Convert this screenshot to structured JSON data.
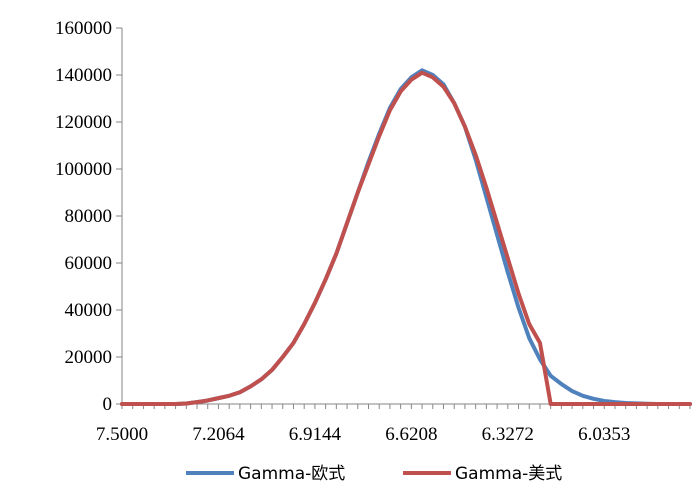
{
  "chart_data": {
    "type": "line",
    "x": [
      7.5,
      7.4673,
      7.4346,
      7.4019,
      7.3692,
      7.3365,
      7.3038,
      7.2711,
      7.2384,
      7.2064,
      7.174,
      7.1415,
      7.109,
      7.0765,
      7.044,
      7.0117,
      6.9792,
      6.9467,
      6.9144,
      6.8819,
      6.8494,
      6.8169,
      6.7844,
      6.7519,
      6.7186,
      6.6858,
      6.653,
      6.6208,
      6.5884,
      6.5561,
      6.5236,
      6.4911,
      6.4586,
      6.4252,
      6.3925,
      6.3598,
      6.3272,
      6.2946,
      6.262,
      6.2294,
      6.1968,
      6.1642,
      6.1316,
      6.099,
      6.0664,
      6.0353,
      6.0027,
      5.9701,
      5.9375,
      5.9049,
      5.8723,
      5.8397,
      5.8071,
      5.7745
    ],
    "series": [
      {
        "name": "Gamma-欧式",
        "color": "#4f81bd",
        "values": [
          0,
          0,
          0,
          0,
          0,
          0,
          200,
          800,
          1500,
          2500,
          3500,
          5000,
          7500,
          10500,
          14500,
          20000,
          26000,
          34000,
          43000,
          53000,
          64000,
          77000,
          90000,
          103000,
          115000,
          126000,
          134000,
          139000,
          142000,
          140000,
          136000,
          128000,
          118000,
          104000,
          88000,
          72000,
          56000,
          41000,
          28000,
          19000,
          12000,
          8500,
          5500,
          3500,
          2200,
          1300,
          800,
          450,
          250,
          100,
          0,
          0,
          0,
          0
        ]
      },
      {
        "name": "Gamma-美式",
        "color": "#c0504d",
        "values": [
          0,
          0,
          0,
          0,
          0,
          0,
          200,
          800,
          1500,
          2500,
          3500,
          5000,
          7500,
          10500,
          14500,
          20000,
          26000,
          34000,
          43000,
          53000,
          64000,
          77000,
          90000,
          102000,
          114000,
          125000,
          133000,
          138000,
          141000,
          139000,
          135000,
          128000,
          118000,
          106000,
          92000,
          77000,
          62000,
          47000,
          34000,
          26000,
          0,
          0,
          0,
          0,
          0,
          0,
          0,
          0,
          0,
          0,
          0,
          0,
          0,
          0
        ]
      }
    ],
    "xticks": [
      "7.5000",
      "7.2064",
      "6.9144",
      "6.6208",
      "6.3272",
      "6.0353"
    ],
    "yticks": [
      "0",
      "20000",
      "40000",
      "60000",
      "80000",
      "100000",
      "120000",
      "140000",
      "160000"
    ],
    "ylim": [
      0,
      160000
    ],
    "grid": false,
    "legend": "bottom"
  }
}
